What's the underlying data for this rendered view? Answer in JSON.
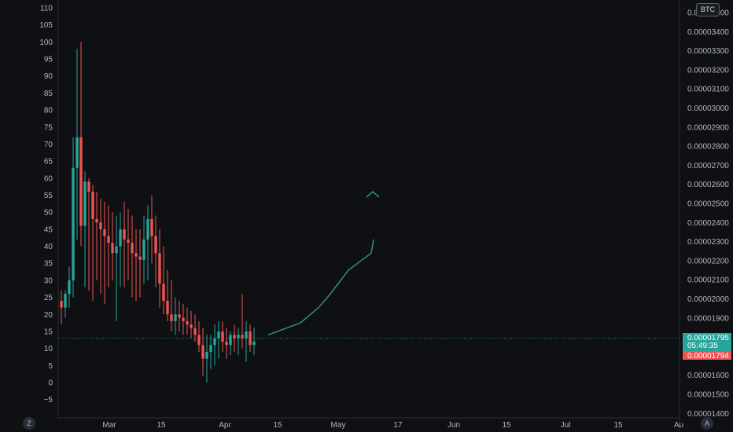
{
  "currency_label": "BTC",
  "corner_left": "Z",
  "corner_right": "A",
  "colors": {
    "up": "#26a69a",
    "down": "#ef5350",
    "background": "#0f1014",
    "arrow": "#2f8f84"
  },
  "chart_data": {
    "type": "candlestick",
    "left_axis": {
      "ticks": [
        "110",
        "105",
        "100",
        "95",
        "90",
        "85",
        "80",
        "75",
        "70",
        "65",
        "60",
        "55",
        "50",
        "45",
        "40",
        "35",
        "30",
        "25",
        "20",
        "15",
        "10",
        "5",
        "0",
        "−5"
      ],
      "range": [
        -9,
        112
      ]
    },
    "right_axis": {
      "ticks": [
        "0.00003500",
        "0.00003400",
        "0.00003300",
        "0.00003200",
        "0.00003100",
        "0.00003000",
        "0.00002900",
        "0.00002800",
        "0.00002700",
        "0.00002600",
        "0.00002500",
        "0.00002400",
        "0.00002300",
        "0.00002200",
        "0.00002100",
        "0.00002000",
        "0.00001900",
        "0.00001800",
        "0.00001700",
        "0.00001600",
        "0.00001500",
        "0.00001400"
      ]
    },
    "x_axis": {
      "ticks": [
        "Mar",
        "15",
        "Apr",
        "15",
        "May",
        "17",
        "Jun",
        "15",
        "Jul",
        "15",
        "Au"
      ]
    },
    "candles": [
      [
        24,
        27,
        17,
        22
      ],
      [
        22,
        27,
        19,
        26
      ],
      [
        26,
        34,
        22,
        30
      ],
      [
        30,
        72,
        25,
        63
      ],
      [
        63,
        98,
        42,
        72
      ],
      [
        72,
        100,
        40,
        46
      ],
      [
        46,
        62,
        28,
        59
      ],
      [
        59,
        60,
        27,
        56
      ],
      [
        56,
        58,
        24,
        48
      ],
      [
        48,
        56,
        30,
        47
      ],
      [
        47,
        54,
        26,
        45
      ],
      [
        45,
        53,
        23,
        43
      ],
      [
        43,
        52,
        28,
        41
      ],
      [
        41,
        50,
        30,
        38
      ],
      [
        38,
        49,
        18,
        40
      ],
      [
        40,
        50,
        28,
        45
      ],
      [
        45,
        53,
        28,
        42
      ],
      [
        42,
        51,
        30,
        41
      ],
      [
        41,
        49,
        25,
        38
      ],
      [
        38,
        45,
        24,
        37
      ],
      [
        37,
        45,
        25,
        36
      ],
      [
        36,
        49,
        29,
        42
      ],
      [
        42,
        52,
        30,
        48
      ],
      [
        48,
        55,
        35,
        43
      ],
      [
        43,
        49,
        28,
        38
      ],
      [
        38,
        45,
        22,
        29
      ],
      [
        29,
        40,
        20,
        24
      ],
      [
        24,
        33,
        18,
        20
      ],
      [
        20,
        30,
        15,
        18
      ],
      [
        18,
        25,
        14,
        20
      ],
      [
        20,
        24,
        15,
        19
      ],
      [
        19,
        23,
        14,
        18
      ],
      [
        18,
        22,
        14,
        17
      ],
      [
        17,
        21,
        13,
        16
      ],
      [
        16,
        20,
        12,
        14
      ],
      [
        14,
        18,
        9,
        11
      ],
      [
        11,
        16,
        2,
        7
      ],
      [
        7,
        14,
        0,
        9
      ],
      [
        9,
        14,
        4,
        11
      ],
      [
        11,
        17,
        5,
        13
      ],
      [
        13,
        18,
        7,
        15
      ],
      [
        15,
        18,
        9,
        12
      ],
      [
        12,
        16,
        7,
        11
      ],
      [
        11,
        15,
        8,
        14
      ],
      [
        14,
        17,
        9,
        13
      ],
      [
        13,
        16,
        8,
        14
      ],
      [
        14,
        26,
        10,
        13
      ],
      [
        13,
        18,
        6,
        15
      ],
      [
        15,
        17,
        9,
        11
      ],
      [
        11,
        16,
        8,
        12
      ]
    ],
    "price_line": 13,
    "arrow_projection": [
      [
        0,
        14
      ],
      [
        1,
        17.5
      ],
      [
        1.6,
        22
      ],
      [
        1.9,
        26
      ],
      [
        2.2,
        33
      ],
      [
        2.7,
        38
      ],
      [
        2.9,
        42
      ]
    ],
    "last_price_badges": [
      {
        "lines": [
          "0.00001795",
          "05:49:35"
        ],
        "color": "#26a69a"
      },
      {
        "lines": [
          "0.00001794"
        ],
        "color": "#ef5350"
      }
    ]
  }
}
